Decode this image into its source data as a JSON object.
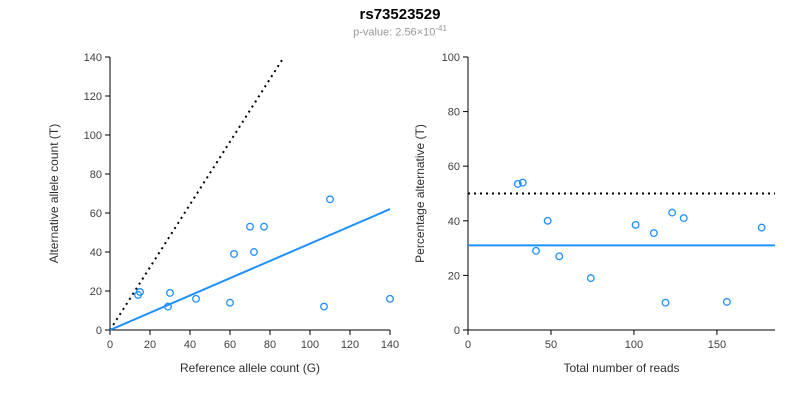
{
  "header": {
    "title": "rs73523529",
    "subtitle_main": "p-value: 2.56×10",
    "subtitle_exp": "-41"
  },
  "colors": {
    "accent": "#1E90FF",
    "reference_line": "#000000",
    "axis": "#000000",
    "tick_label": "#404040",
    "subtitle": "#999999"
  },
  "chart_data": [
    {
      "type": "scatter",
      "xlabel": "Reference allele count (G)",
      "ylabel": "Alternative allele count (T)",
      "xlim": [
        0,
        140
      ],
      "ylim": [
        0,
        140
      ],
      "xticks": [
        0,
        20,
        40,
        60,
        80,
        100,
        120,
        140
      ],
      "yticks": [
        0,
        20,
        40,
        60,
        80,
        100,
        120,
        140
      ],
      "grid": false,
      "legend": false,
      "points": [
        [
          14,
          18
        ],
        [
          15,
          19.5
        ],
        [
          29,
          12
        ],
        [
          30,
          19
        ],
        [
          43,
          16
        ],
        [
          60,
          14
        ],
        [
          62,
          39
        ],
        [
          70,
          53
        ],
        [
          72,
          40
        ],
        [
          77,
          53
        ],
        [
          107,
          12
        ],
        [
          110,
          67
        ],
        [
          140,
          16
        ]
      ],
      "lines": [
        {
          "name": "expected-reference-line",
          "style": "dotted",
          "color": "#000000",
          "from": [
            0,
            0
          ],
          "to": [
            87,
            140
          ]
        },
        {
          "name": "fitted-ratio-line",
          "style": "solid",
          "color": "#1E90FF",
          "from": [
            0,
            0
          ],
          "to": [
            140,
            62
          ]
        }
      ]
    },
    {
      "type": "scatter",
      "xlabel": "Total number of reads",
      "ylabel": "Percentage alternative (T)",
      "xlim": [
        0,
        185
      ],
      "ylim": [
        0,
        100
      ],
      "xticks": [
        0,
        50,
        100,
        150
      ],
      "yticks": [
        0,
        20,
        40,
        60,
        80,
        100
      ],
      "grid": false,
      "legend": false,
      "points": [
        [
          30,
          53.5
        ],
        [
          33,
          54
        ],
        [
          41,
          29
        ],
        [
          48,
          40
        ],
        [
          55,
          27
        ],
        [
          74,
          19
        ],
        [
          101,
          38.5
        ],
        [
          112,
          35.5
        ],
        [
          119,
          10
        ],
        [
          123,
          43
        ],
        [
          130,
          41
        ],
        [
          156,
          10.3
        ],
        [
          177,
          37.5
        ]
      ],
      "lines": [
        {
          "name": "fifty-percent-line",
          "style": "dotted",
          "color": "#000000",
          "from": [
            0,
            50
          ],
          "to": [
            185,
            50
          ]
        },
        {
          "name": "mean-percentage-line",
          "style": "solid",
          "color": "#1E90FF",
          "from": [
            0,
            31
          ],
          "to": [
            185,
            31
          ]
        }
      ]
    }
  ]
}
